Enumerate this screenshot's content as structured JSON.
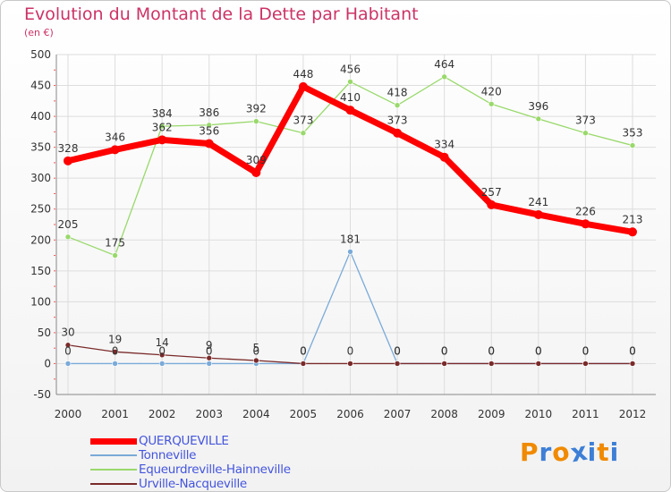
{
  "title": "Evolution du Montant de la Dette par Habitant",
  "unit": "(en €)",
  "logo": {
    "text": "Proxiti",
    "colors": [
      "#f08a00",
      "#3d7fd6",
      "#f08a00",
      "#3d7fd6",
      "#3d7fd6",
      "#f08a00",
      "#3d7fd6"
    ]
  },
  "chart_data": {
    "type": "line",
    "x": [
      "2000",
      "2001",
      "2002",
      "2003",
      "2004",
      "2005",
      "2006",
      "2007",
      "2008",
      "2009",
      "2010",
      "2011",
      "2012"
    ],
    "ylim": [
      -50,
      500
    ],
    "yticks": [
      -50,
      0,
      50,
      100,
      150,
      200,
      250,
      300,
      350,
      400,
      450,
      500
    ],
    "grid": true,
    "legend": "bottom-left",
    "series": [
      {
        "name": "QUERQUEVILLE",
        "color": "#ff0000",
        "values": [
          328,
          346,
          362,
          356,
          309,
          448,
          410,
          373,
          334,
          257,
          241,
          226,
          213
        ],
        "labels": [
          "328",
          "346",
          "362",
          "356",
          "309",
          "448",
          "410",
          "373",
          "334",
          "257",
          "241",
          "226",
          "213"
        ]
      },
      {
        "name": "Tonneville",
        "color": "#7aaad8",
        "values": [
          0,
          0,
          0,
          0,
          0,
          0,
          181,
          0,
          0,
          0,
          0,
          0,
          0
        ],
        "labels": [
          "0",
          "0",
          "0",
          "0",
          "0",
          "0",
          "181",
          "0",
          "0",
          "0",
          "0",
          "0",
          "0"
        ]
      },
      {
        "name": "Equeurdreville-Hainneville",
        "color": "#99d96b",
        "values": [
          205,
          175,
          384,
          386,
          392,
          373,
          456,
          418,
          464,
          420,
          396,
          373,
          353
        ],
        "labels": [
          "205",
          "175",
          "384",
          "386",
          "392",
          "373",
          "456",
          "418",
          "464",
          "420",
          "396",
          "373",
          "353"
        ]
      },
      {
        "name": "Urville-Nacqueville",
        "color": "#7a2a2a",
        "values": [
          30,
          19,
          14,
          9,
          5,
          0,
          0,
          0,
          0,
          0,
          0,
          0,
          0
        ],
        "labels": [
          "30",
          "19",
          "14",
          "9",
          "5",
          "0",
          "0",
          "0",
          "0",
          "0",
          "0",
          "0",
          "0"
        ]
      }
    ]
  }
}
